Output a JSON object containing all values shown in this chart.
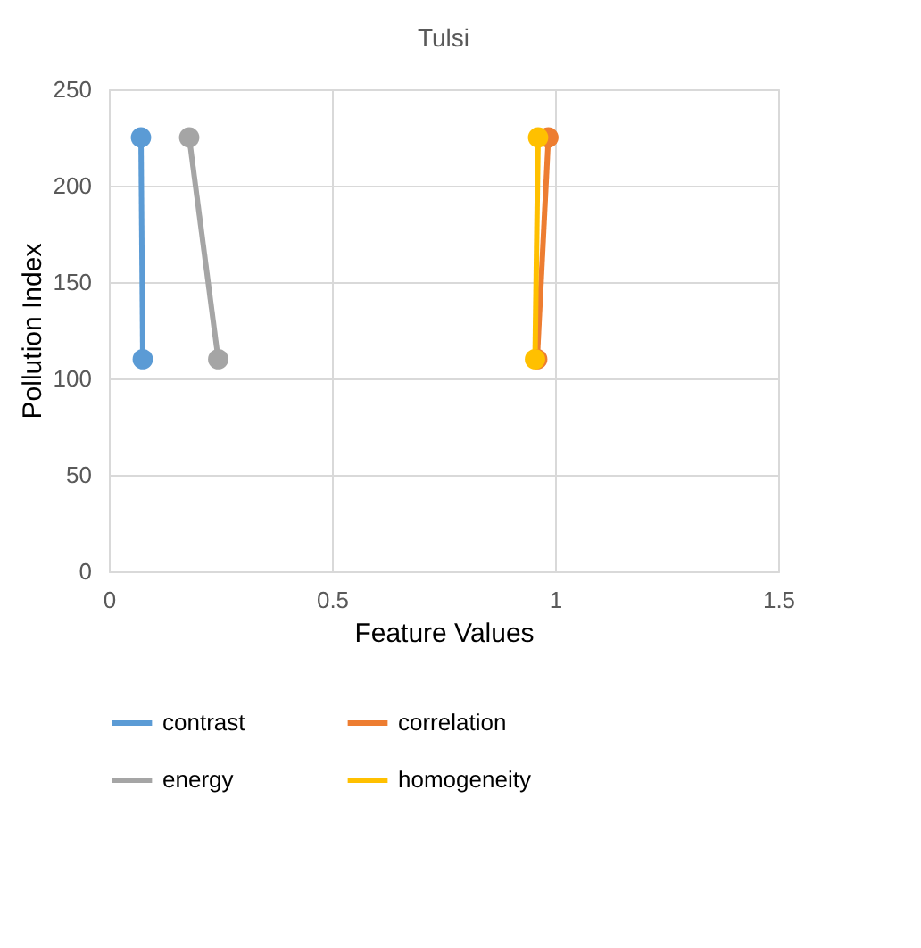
{
  "chart_data": {
    "type": "line",
    "title": "Tulsi",
    "xlabel": "Feature Values",
    "ylabel": "Pollution Index",
    "xlim": [
      0,
      1.5
    ],
    "xticks": [
      0,
      0.5,
      1,
      1.5
    ],
    "ylim": [
      0,
      250
    ],
    "yticks": [
      0,
      50,
      100,
      150,
      200,
      250
    ],
    "grid": true,
    "legend": "bottom",
    "marker": "circle",
    "line_style": "solid",
    "series": [
      {
        "name": "contrast",
        "color": "#5b9bd5",
        "x": [
          0.072,
          0.076
        ],
        "values": [
          225,
          110
        ]
      },
      {
        "name": "correlation",
        "color": "#ed7d31",
        "x": [
          0.985,
          0.96
        ],
        "values": [
          225,
          110
        ]
      },
      {
        "name": "energy",
        "color": "#a5a5a5",
        "x": [
          0.18,
          0.245
        ],
        "values": [
          225,
          110
        ]
      },
      {
        "name": "homogeneity",
        "color": "#ffc000",
        "x": [
          0.962,
          0.955
        ],
        "values": [
          225,
          110
        ]
      }
    ]
  }
}
